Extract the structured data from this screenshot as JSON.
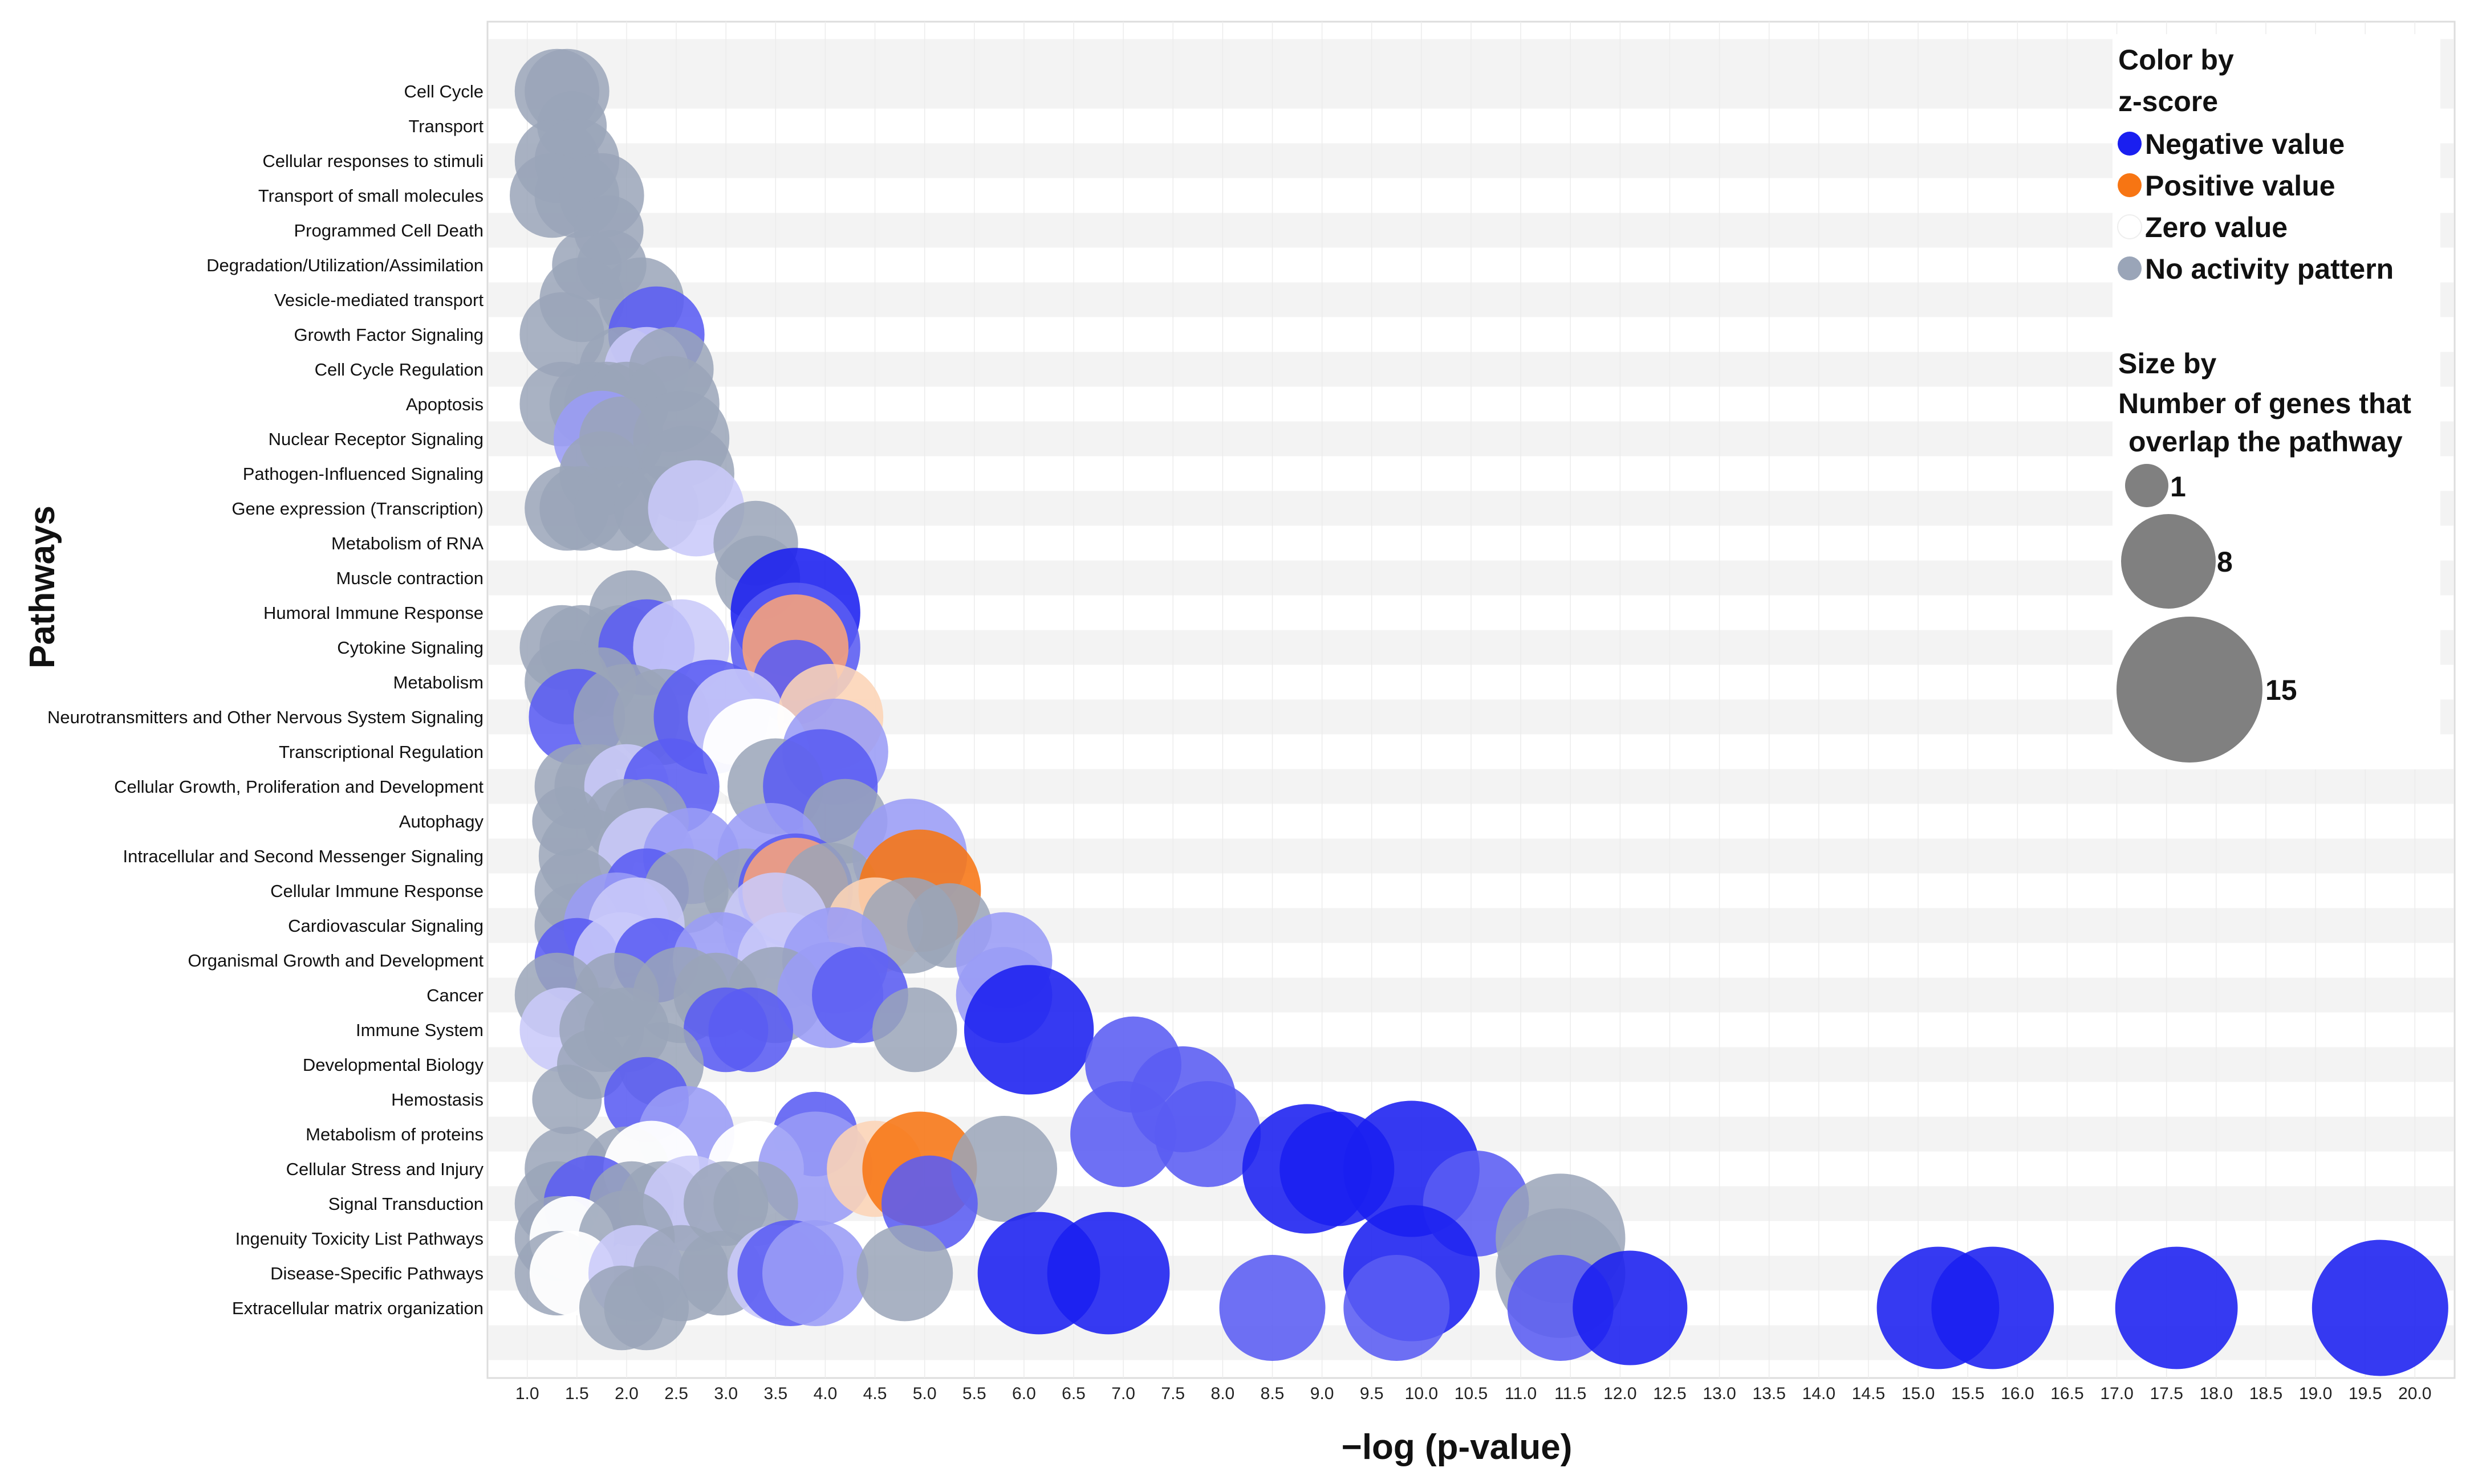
{
  "chart_data": {
    "type": "scatter",
    "xlabel": "−log (p-value)",
    "ylabel": "Pathways",
    "xlim": [
      0.6,
      20.4
    ],
    "xticks": [
      "1.0",
      "1.5",
      "2.0",
      "2.5",
      "3.0",
      "3.5",
      "4.0",
      "4.5",
      "5.0",
      "5.5",
      "6.0",
      "6.5",
      "7.0",
      "7.5",
      "8.0",
      "8.5",
      "9.0",
      "9.5",
      "10.0",
      "10.5",
      "11.0",
      "11.5",
      "12.0",
      "12.5",
      "13.0",
      "13.5",
      "14.0",
      "14.5",
      "15.0",
      "15.5",
      "16.0",
      "16.5",
      "17.0",
      "17.5",
      "18.0",
      "18.5",
      "19.0",
      "19.5",
      "20.0"
    ],
    "categories": [
      "Cell Cycle",
      "Transport",
      "Cellular responses to stimuli",
      "Transport of small molecules",
      "Programmed Cell Death",
      "Degradation/Utilization/Assimilation",
      "Vesicle-mediated transport",
      "Growth Factor Signaling",
      "Cell Cycle Regulation",
      "Apoptosis",
      "Nuclear Receptor Signaling",
      "Pathogen-Influenced Signaling",
      "Gene expression (Transcription)",
      "Metabolism of RNA",
      "Muscle contraction",
      "Humoral Immune Response",
      "Cytokine Signaling",
      "Metabolism",
      "Neurotransmitters and Other Nervous System Signaling",
      "Transcriptional Regulation",
      "Cellular Growth, Proliferation and Development",
      "Autophagy",
      "Intracellular and Second Messenger Signaling",
      "Cellular Immune Response",
      "Cardiovascular Signaling",
      "Organismal Growth and Development",
      "Cancer",
      "Immune System",
      "Developmental Biology",
      "Hemostasis",
      "Metabolism of proteins",
      "Cellular Stress and Injury",
      "Signal Transduction",
      "Ingenuity Toxicity List Pathways",
      "Disease-Specific Pathways",
      "Extracellular matrix organization"
    ],
    "colors": {
      "grey": "#9aa5b8",
      "blue_strong": "#1a1ff0",
      "blue_mid": "#5a5cf2",
      "blue_light": "#9a9cf6",
      "blue_pale": "#c9caf9",
      "orange_strong": "#f77513",
      "orange_light": "#f9a37a",
      "orange_pale": "#fcd4b6",
      "white": "#ffffff"
    },
    "points": [
      {
        "row": 0,
        "x": 1.3,
        "size": 2,
        "color": "grey"
      },
      {
        "row": 0,
        "x": 1.4,
        "size": 2,
        "color": "grey"
      },
      {
        "row": 1,
        "x": 1.45,
        "size": 1,
        "color": "grey"
      },
      {
        "row": 2,
        "x": 1.3,
        "size": 2,
        "color": "grey"
      },
      {
        "row": 2,
        "x": 1.5,
        "size": 2,
        "color": "grey"
      },
      {
        "row": 3,
        "x": 1.25,
        "size": 2,
        "color": "grey"
      },
      {
        "row": 3,
        "x": 1.5,
        "size": 2,
        "color": "grey"
      },
      {
        "row": 3,
        "x": 1.75,
        "size": 2,
        "color": "grey"
      },
      {
        "row": 4,
        "x": 1.82,
        "size": 1,
        "color": "grey"
      },
      {
        "row": 5,
        "x": 1.6,
        "size": 1,
        "color": "grey"
      },
      {
        "row": 5,
        "x": 1.85,
        "size": 1,
        "color": "grey"
      },
      {
        "row": 6,
        "x": 1.55,
        "size": 2,
        "color": "grey"
      },
      {
        "row": 6,
        "x": 2.15,
        "size": 2,
        "color": "grey"
      },
      {
        "row": 7,
        "x": 1.35,
        "size": 2,
        "color": "grey"
      },
      {
        "row": 7,
        "x": 2.3,
        "size": 3,
        "color": "blue_mid"
      },
      {
        "row": 8,
        "x": 1.95,
        "size": 2,
        "color": "grey"
      },
      {
        "row": 8,
        "x": 2.2,
        "size": 2,
        "color": "blue_pale"
      },
      {
        "row": 8,
        "x": 2.45,
        "size": 2,
        "color": "grey"
      },
      {
        "row": 9,
        "x": 1.35,
        "size": 2,
        "color": "grey"
      },
      {
        "row": 9,
        "x": 1.65,
        "size": 2,
        "color": "grey"
      },
      {
        "row": 9,
        "x": 1.8,
        "size": 2,
        "color": "grey"
      },
      {
        "row": 9,
        "x": 2.0,
        "size": 2,
        "color": "grey"
      },
      {
        "row": 9,
        "x": 2.45,
        "size": 3,
        "color": "grey"
      },
      {
        "row": 10,
        "x": 1.75,
        "size": 3,
        "color": "blue_light"
      },
      {
        "row": 10,
        "x": 1.95,
        "size": 2,
        "color": "grey"
      },
      {
        "row": 10,
        "x": 2.55,
        "size": 3,
        "color": "grey"
      },
      {
        "row": 11,
        "x": 1.75,
        "size": 2,
        "color": "grey"
      },
      {
        "row": 11,
        "x": 2.6,
        "size": 3,
        "color": "grey"
      },
      {
        "row": 12,
        "x": 1.4,
        "size": 2,
        "color": "grey"
      },
      {
        "row": 12,
        "x": 1.55,
        "size": 2,
        "color": "grey"
      },
      {
        "row": 12,
        "x": 1.9,
        "size": 2,
        "color": "grey"
      },
      {
        "row": 12,
        "x": 2.3,
        "size": 2,
        "color": "grey"
      },
      {
        "row": 12,
        "x": 2.7,
        "size": 3,
        "color": "blue_pale"
      },
      {
        "row": 13,
        "x": 3.3,
        "size": 2,
        "color": "grey"
      },
      {
        "row": 14,
        "x": 3.32,
        "size": 2,
        "color": "grey"
      },
      {
        "row": 15,
        "x": 2.05,
        "size": 2,
        "color": "grey"
      },
      {
        "row": 15,
        "x": 3.7,
        "size": 7,
        "color": "blue_strong"
      },
      {
        "row": 16,
        "x": 1.35,
        "size": 2,
        "color": "grey"
      },
      {
        "row": 16,
        "x": 1.55,
        "size": 2,
        "color": "grey"
      },
      {
        "row": 16,
        "x": 1.95,
        "size": 2,
        "color": "grey"
      },
      {
        "row": 16,
        "x": 2.2,
        "size": 3,
        "color": "blue_mid"
      },
      {
        "row": 16,
        "x": 2.55,
        "size": 3,
        "color": "blue_pale"
      },
      {
        "row": 16,
        "x": 3.7,
        "size": 7,
        "color": "blue_mid"
      },
      {
        "row": 16,
        "x": 3.7,
        "size": 4,
        "color": "orange_light"
      },
      {
        "row": 17,
        "x": 1.4,
        "size": 2,
        "color": "grey"
      },
      {
        "row": 17,
        "x": 1.75,
        "size": 1,
        "color": "grey"
      },
      {
        "row": 17,
        "x": 3.7,
        "size": 2,
        "color": "blue_mid"
      },
      {
        "row": 18,
        "x": 1.5,
        "size": 3,
        "color": "blue_mid"
      },
      {
        "row": 18,
        "x": 2.0,
        "size": 4,
        "color": "grey"
      },
      {
        "row": 18,
        "x": 2.35,
        "size": 3,
        "color": "grey"
      },
      {
        "row": 18,
        "x": 2.85,
        "size": 5,
        "color": "blue_mid"
      },
      {
        "row": 18,
        "x": 3.1,
        "size": 3,
        "color": "blue_pale"
      },
      {
        "row": 18,
        "x": 4.05,
        "size": 4,
        "color": "orange_pale"
      },
      {
        "row": 19,
        "x": 3.3,
        "size": 4,
        "color": "white"
      },
      {
        "row": 19,
        "x": 4.1,
        "size": 4,
        "color": "blue_light"
      },
      {
        "row": 20,
        "x": 1.5,
        "size": 2,
        "color": "grey"
      },
      {
        "row": 20,
        "x": 1.7,
        "size": 2,
        "color": "grey"
      },
      {
        "row": 20,
        "x": 2.0,
        "size": 2,
        "color": "blue_pale"
      },
      {
        "row": 20,
        "x": 2.45,
        "size": 3,
        "color": "blue_mid"
      },
      {
        "row": 20,
        "x": 3.5,
        "size": 3,
        "color": "grey"
      },
      {
        "row": 20,
        "x": 3.95,
        "size": 5,
        "color": "blue_mid"
      },
      {
        "row": 21,
        "x": 1.4,
        "size": 1,
        "color": "grey"
      },
      {
        "row": 21,
        "x": 2.0,
        "size": 2,
        "color": "grey"
      },
      {
        "row": 21,
        "x": 2.2,
        "size": 2,
        "color": "grey"
      },
      {
        "row": 21,
        "x": 4.2,
        "size": 2,
        "color": "grey"
      },
      {
        "row": 22,
        "x": 1.6,
        "size": 3,
        "color": "grey"
      },
      {
        "row": 22,
        "x": 2.2,
        "size": 3,
        "color": "blue_pale"
      },
      {
        "row": 22,
        "x": 2.65,
        "size": 3,
        "color": "blue_light"
      },
      {
        "row": 22,
        "x": 3.45,
        "size": 4,
        "color": "blue_light"
      },
      {
        "row": 22,
        "x": 4.85,
        "size": 5,
        "color": "blue_light"
      },
      {
        "row": 23,
        "x": 1.5,
        "size": 2,
        "color": "grey"
      },
      {
        "row": 23,
        "x": 2.2,
        "size": 2,
        "color": "blue_mid"
      },
      {
        "row": 23,
        "x": 2.6,
        "size": 2,
        "color": "grey"
      },
      {
        "row": 23,
        "x": 3.2,
        "size": 2,
        "color": "grey"
      },
      {
        "row": 23,
        "x": 3.7,
        "size": 5,
        "color": "blue_mid"
      },
      {
        "row": 23,
        "x": 3.7,
        "size": 4,
        "color": "orange_light"
      },
      {
        "row": 23,
        "x": 4.05,
        "size": 3,
        "color": "grey"
      },
      {
        "row": 23,
        "x": 4.95,
        "size": 6,
        "color": "orange_strong"
      },
      {
        "row": 24,
        "x": 1.5,
        "size": 2,
        "color": "grey"
      },
      {
        "row": 24,
        "x": 1.9,
        "size": 4,
        "color": "blue_light"
      },
      {
        "row": 24,
        "x": 2.1,
        "size": 3,
        "color": "blue_pale"
      },
      {
        "row": 24,
        "x": 3.5,
        "size": 4,
        "color": "blue_pale"
      },
      {
        "row": 24,
        "x": 4.5,
        "size": 3,
        "color": "orange_pale"
      },
      {
        "row": 24,
        "x": 4.85,
        "size": 3,
        "color": "grey"
      },
      {
        "row": 24,
        "x": 5.25,
        "size": 2,
        "color": "grey"
      },
      {
        "row": 25,
        "x": 1.5,
        "size": 2,
        "color": "blue_mid"
      },
      {
        "row": 25,
        "x": 1.95,
        "size": 3,
        "color": "blue_pale"
      },
      {
        "row": 25,
        "x": 2.3,
        "size": 2,
        "color": "blue_mid"
      },
      {
        "row": 25,
        "x": 2.95,
        "size": 3,
        "color": "blue_light"
      },
      {
        "row": 25,
        "x": 3.6,
        "size": 3,
        "color": "blue_pale"
      },
      {
        "row": 25,
        "x": 4.1,
        "size": 4,
        "color": "blue_light"
      },
      {
        "row": 25,
        "x": 5.8,
        "size": 3,
        "color": "blue_light"
      },
      {
        "row": 26,
        "x": 1.3,
        "size": 2,
        "color": "grey"
      },
      {
        "row": 26,
        "x": 1.9,
        "size": 2,
        "color": "grey"
      },
      {
        "row": 26,
        "x": 2.55,
        "size": 3,
        "color": "grey"
      },
      {
        "row": 26,
        "x": 2.9,
        "size": 2,
        "color": "grey"
      },
      {
        "row": 26,
        "x": 3.5,
        "size": 3,
        "color": "grey"
      },
      {
        "row": 26,
        "x": 4.05,
        "size": 4,
        "color": "blue_light"
      },
      {
        "row": 26,
        "x": 4.35,
        "size": 3,
        "color": "blue_mid"
      },
      {
        "row": 26,
        "x": 5.8,
        "size": 3,
        "color": "blue_light"
      },
      {
        "row": 27,
        "x": 1.35,
        "size": 2,
        "color": "blue_pale"
      },
      {
        "row": 27,
        "x": 1.75,
        "size": 2,
        "color": "grey"
      },
      {
        "row": 27,
        "x": 2.0,
        "size": 2,
        "color": "grey"
      },
      {
        "row": 27,
        "x": 3.0,
        "size": 2,
        "color": "blue_mid"
      },
      {
        "row": 27,
        "x": 3.25,
        "size": 2,
        "color": "blue_mid"
      },
      {
        "row": 27,
        "x": 4.9,
        "size": 2,
        "color": "grey"
      },
      {
        "row": 27,
        "x": 6.05,
        "size": 7,
        "color": "blue_strong"
      },
      {
        "row": 28,
        "x": 1.65,
        "size": 1,
        "color": "grey"
      },
      {
        "row": 28,
        "x": 2.35,
        "size": 2,
        "color": "grey"
      },
      {
        "row": 28,
        "x": 7.1,
        "size": 3,
        "color": "blue_mid"
      },
      {
        "row": 29,
        "x": 1.4,
        "size": 1,
        "color": "grey"
      },
      {
        "row": 29,
        "x": 2.2,
        "size": 2,
        "color": "blue_mid"
      },
      {
        "row": 29,
        "x": 7.6,
        "size": 4,
        "color": "blue_mid"
      },
      {
        "row": 30,
        "x": 2.6,
        "size": 3,
        "color": "blue_light"
      },
      {
        "row": 30,
        "x": 3.9,
        "size": 2,
        "color": "blue_mid"
      },
      {
        "row": 30,
        "x": 7.0,
        "size": 4,
        "color": "blue_mid"
      },
      {
        "row": 30,
        "x": 7.85,
        "size": 4,
        "color": "blue_mid"
      },
      {
        "row": 31,
        "x": 1.4,
        "size": 2,
        "color": "grey"
      },
      {
        "row": 31,
        "x": 2.0,
        "size": 2,
        "color": "grey"
      },
      {
        "row": 31,
        "x": 2.25,
        "size": 3,
        "color": "white"
      },
      {
        "row": 31,
        "x": 3.3,
        "size": 3,
        "color": "white"
      },
      {
        "row": 31,
        "x": 3.9,
        "size": 5,
        "color": "blue_light"
      },
      {
        "row": 31,
        "x": 4.5,
        "size": 3,
        "color": "orange_pale"
      },
      {
        "row": 31,
        "x": 4.95,
        "size": 5,
        "color": "orange_strong"
      },
      {
        "row": 31,
        "x": 5.8,
        "size": 4,
        "color": "grey"
      },
      {
        "row": 31,
        "x": 8.85,
        "size": 7,
        "color": "blue_strong"
      },
      {
        "row": 31,
        "x": 9.15,
        "size": 5,
        "color": "blue_strong"
      },
      {
        "row": 31,
        "x": 9.9,
        "size": 8,
        "color": "blue_strong"
      },
      {
        "row": 32,
        "x": 1.3,
        "size": 2,
        "color": "grey"
      },
      {
        "row": 32,
        "x": 1.65,
        "size": 3,
        "color": "blue_mid"
      },
      {
        "row": 32,
        "x": 2.05,
        "size": 2,
        "color": "grey"
      },
      {
        "row": 32,
        "x": 2.35,
        "size": 2,
        "color": "grey"
      },
      {
        "row": 32,
        "x": 2.65,
        "size": 3,
        "color": "blue_pale"
      },
      {
        "row": 32,
        "x": 3.0,
        "size": 2,
        "color": "grey"
      },
      {
        "row": 32,
        "x": 3.3,
        "size": 2,
        "color": "grey"
      },
      {
        "row": 32,
        "x": 5.05,
        "size": 3,
        "color": "blue_mid"
      },
      {
        "row": 32,
        "x": 10.55,
        "size": 4,
        "color": "blue_mid"
      },
      {
        "row": 33,
        "x": 1.3,
        "size": 2,
        "color": "grey"
      },
      {
        "row": 33,
        "x": 1.45,
        "size": 2,
        "color": "white"
      },
      {
        "row": 33,
        "x": 2.0,
        "size": 3,
        "color": "grey"
      },
      {
        "row": 33,
        "x": 11.4,
        "size": 7,
        "color": "grey"
      },
      {
        "row": 34,
        "x": 1.3,
        "size": 2,
        "color": "grey"
      },
      {
        "row": 34,
        "x": 1.45,
        "size": 2,
        "color": "white"
      },
      {
        "row": 34,
        "x": 2.1,
        "size": 3,
        "color": "blue_pale"
      },
      {
        "row": 34,
        "x": 2.55,
        "size": 3,
        "color": "grey"
      },
      {
        "row": 34,
        "x": 2.95,
        "size": 2,
        "color": "grey"
      },
      {
        "row": 34,
        "x": 3.5,
        "size": 3,
        "color": "blue_pale"
      },
      {
        "row": 34,
        "x": 3.65,
        "size": 4,
        "color": "blue_mid"
      },
      {
        "row": 34,
        "x": 3.9,
        "size": 4,
        "color": "blue_light"
      },
      {
        "row": 34,
        "x": 4.8,
        "size": 3,
        "color": "grey"
      },
      {
        "row": 34,
        "x": 6.15,
        "size": 6,
        "color": "blue_strong"
      },
      {
        "row": 34,
        "x": 6.85,
        "size": 6,
        "color": "blue_strong"
      },
      {
        "row": 34,
        "x": 9.9,
        "size": 8,
        "color": "blue_strong"
      },
      {
        "row": 34,
        "x": 11.4,
        "size": 7,
        "color": "grey"
      },
      {
        "row": 35,
        "x": 1.95,
        "size": 2,
        "color": "grey"
      },
      {
        "row": 35,
        "x": 2.2,
        "size": 2,
        "color": "grey"
      },
      {
        "row": 35,
        "x": 8.5,
        "size": 4,
        "color": "blue_mid"
      },
      {
        "row": 35,
        "x": 9.75,
        "size": 4,
        "color": "blue_mid"
      },
      {
        "row": 35,
        "x": 11.4,
        "size": 4,
        "color": "blue_mid"
      },
      {
        "row": 35,
        "x": 12.1,
        "size": 5,
        "color": "blue_strong"
      },
      {
        "row": 35,
        "x": 15.2,
        "size": 6,
        "color": "blue_strong"
      },
      {
        "row": 35,
        "x": 15.75,
        "size": 6,
        "color": "blue_strong"
      },
      {
        "row": 35,
        "x": 17.6,
        "size": 6,
        "color": "blue_strong"
      },
      {
        "row": 35,
        "x": 19.65,
        "size": 8,
        "color": "blue_strong"
      }
    ],
    "legend": {
      "color_title_1": "Color by",
      "color_title_2": "z-score",
      "color_items": [
        {
          "label": "Negative value",
          "color": "#1a1ff0"
        },
        {
          "label": "Positive value",
          "color": "#f77513"
        },
        {
          "label": "Zero value",
          "color": "#ffffff"
        },
        {
          "label": "No activity pattern",
          "color": "#9aa5b8"
        }
      ],
      "size_title_1": "Size by",
      "size_title_2": "Number of genes that",
      "size_title_3": "overlap the pathway",
      "size_items": [
        {
          "label": "1",
          "value": 1
        },
        {
          "label": "8",
          "value": 8
        },
        {
          "label": "15",
          "value": 15
        }
      ]
    }
  }
}
